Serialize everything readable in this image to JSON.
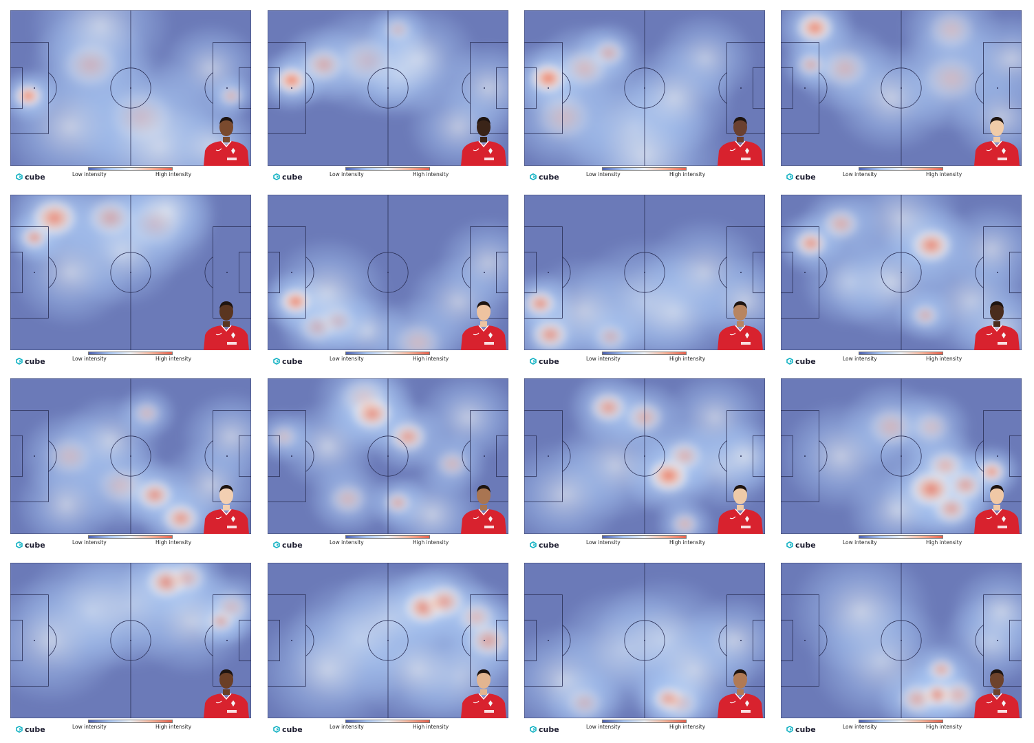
{
  "labels": {
    "low": "Low intensity",
    "high": "High intensity",
    "brand": "cube"
  },
  "colors": {
    "pitch_bg": "#6b7ab8",
    "scale": [
      "#4a5fb0",
      "#a9c6f2",
      "#eef2f6",
      "#f7b59b",
      "#e8604c"
    ],
    "kit_red": "#d8222e",
    "brand_teal": "#17b3c4",
    "line": "#2a2f55"
  },
  "chart_data": {
    "type": "heatmap",
    "pitch_units": {
      "x": [
        0,
        120
      ],
      "y": [
        0,
        80
      ]
    },
    "colorbar": {
      "low_label": "Low intensity",
      "high_label": "High intensity"
    },
    "panels": [
      {
        "skin": "#7a4a2e",
        "spots": [
          [
            9,
            44,
            0.98,
            6
          ],
          [
            110,
            44,
            0.62,
            5
          ],
          [
            40,
            28,
            0.5,
            12
          ],
          [
            65,
            55,
            0.45,
            14
          ],
          [
            30,
            60,
            0.4,
            14
          ],
          [
            75,
            70,
            0.32,
            18
          ],
          [
            45,
            8,
            0.3,
            14
          ],
          [
            100,
            70,
            0.28,
            10
          ],
          [
            100,
            30,
            0.3,
            10
          ]
        ]
      },
      {
        "skin": "#3a2418",
        "spots": [
          [
            12,
            36,
            0.98,
            7
          ],
          [
            28,
            28,
            0.6,
            9
          ],
          [
            50,
            26,
            0.45,
            12
          ],
          [
            65,
            33,
            0.4,
            10
          ],
          [
            65,
            10,
            0.5,
            6
          ],
          [
            75,
            25,
            0.3,
            12
          ],
          [
            110,
            40,
            0.35,
            10
          ],
          [
            95,
            60,
            0.28,
            10
          ]
        ]
      },
      {
        "skin": "#6a4030",
        "spots": [
          [
            12,
            35,
            0.98,
            8
          ],
          [
            42,
            22,
            0.6,
            7
          ],
          [
            30,
            30,
            0.5,
            10
          ],
          [
            20,
            55,
            0.45,
            12
          ],
          [
            55,
            60,
            0.3,
            14
          ],
          [
            60,
            75,
            0.3,
            16
          ],
          [
            90,
            25,
            0.3,
            10
          ],
          [
            75,
            45,
            0.3,
            12
          ]
        ]
      },
      {
        "skin": "#f0cba8",
        "spots": [
          [
            17,
            9,
            0.9,
            8
          ],
          [
            15,
            28,
            0.62,
            6
          ],
          [
            32,
            30,
            0.5,
            10
          ],
          [
            55,
            45,
            0.42,
            12
          ],
          [
            85,
            35,
            0.45,
            12
          ],
          [
            85,
            10,
            0.45,
            10
          ],
          [
            115,
            25,
            0.35,
            10
          ],
          [
            110,
            55,
            0.28,
            10
          ]
        ]
      },
      {
        "skin": "#5a3520",
        "spots": [
          [
            12,
            22,
            0.8,
            6
          ],
          [
            22,
            12,
            0.85,
            10
          ],
          [
            50,
            12,
            0.6,
            10
          ],
          [
            72,
            15,
            0.45,
            12
          ],
          [
            78,
            8,
            0.4,
            10
          ],
          [
            55,
            30,
            0.3,
            12
          ],
          [
            30,
            40,
            0.3,
            12
          ]
        ]
      },
      {
        "skin": "#eec3a0",
        "spots": [
          [
            14,
            55,
            0.95,
            7
          ],
          [
            25,
            68,
            0.55,
            8
          ],
          [
            35,
            65,
            0.5,
            8
          ],
          [
            50,
            70,
            0.4,
            8
          ],
          [
            75,
            76,
            0.45,
            10
          ],
          [
            95,
            55,
            0.3,
            10
          ],
          [
            30,
            50,
            0.35,
            12
          ],
          [
            110,
            35,
            0.25,
            10
          ]
        ]
      },
      {
        "skin": "#b88560",
        "spots": [
          [
            8,
            56,
            0.85,
            7
          ],
          [
            13,
            72,
            0.8,
            8
          ],
          [
            43,
            73,
            0.55,
            7
          ],
          [
            60,
            55,
            0.3,
            14
          ],
          [
            75,
            60,
            0.3,
            12
          ],
          [
            90,
            40,
            0.25,
            12
          ],
          [
            110,
            55,
            0.3,
            10
          ],
          [
            30,
            60,
            0.3,
            12
          ]
        ]
      },
      {
        "skin": "#4a2c1c",
        "spots": [
          [
            15,
            25,
            0.82,
            7
          ],
          [
            75,
            26,
            0.88,
            9
          ],
          [
            30,
            15,
            0.6,
            8
          ],
          [
            72,
            62,
            0.6,
            6
          ],
          [
            35,
            45,
            0.4,
            10
          ],
          [
            55,
            45,
            0.4,
            12
          ],
          [
            95,
            55,
            0.35,
            12
          ],
          [
            105,
            28,
            0.3,
            10
          ],
          [
            60,
            12,
            0.3,
            12
          ],
          [
            110,
            70,
            0.3,
            10
          ]
        ]
      },
      {
        "skin": "#f2cfb2",
        "spots": [
          [
            72,
            60,
            0.82,
            8
          ],
          [
            85,
            72,
            0.8,
            8
          ],
          [
            30,
            40,
            0.45,
            10
          ],
          [
            55,
            55,
            0.45,
            10
          ],
          [
            68,
            18,
            0.5,
            6
          ],
          [
            50,
            32,
            0.35,
            10
          ],
          [
            28,
            65,
            0.35,
            10
          ],
          [
            100,
            55,
            0.35,
            10
          ],
          [
            110,
            30,
            0.3,
            10
          ]
        ]
      },
      {
        "skin": "#a97552",
        "spots": [
          [
            52,
            18,
            0.88,
            9
          ],
          [
            70,
            30,
            0.75,
            8
          ],
          [
            65,
            64,
            0.65,
            6
          ],
          [
            40,
            62,
            0.5,
            8
          ],
          [
            48,
            10,
            0.45,
            10
          ],
          [
            30,
            35,
            0.4,
            10
          ],
          [
            92,
            44,
            0.5,
            7
          ],
          [
            82,
            70,
            0.4,
            10
          ],
          [
            8,
            30,
            0.45,
            6
          ],
          [
            100,
            20,
            0.35,
            10
          ]
        ]
      },
      {
        "skin": "#eecaa8",
        "spots": [
          [
            72,
            50,
            0.95,
            9
          ],
          [
            80,
            40,
            0.6,
            8
          ],
          [
            42,
            15,
            0.75,
            8
          ],
          [
            60,
            20,
            0.6,
            8
          ],
          [
            80,
            75,
            0.55,
            6
          ],
          [
            45,
            45,
            0.35,
            12
          ],
          [
            100,
            45,
            0.35,
            10
          ],
          [
            20,
            60,
            0.3,
            12
          ],
          [
            95,
            20,
            0.3,
            10
          ],
          [
            110,
            40,
            0.4,
            8
          ]
        ]
      },
      {
        "skin": "#f0c8a6",
        "spots": [
          [
            75,
            57,
            0.9,
            10
          ],
          [
            85,
            67,
            0.7,
            8
          ],
          [
            92,
            55,
            0.7,
            8
          ],
          [
            82,
            45,
            0.6,
            8
          ],
          [
            105,
            48,
            0.85,
            6
          ],
          [
            55,
            25,
            0.5,
            10
          ],
          [
            58,
            68,
            0.35,
            10
          ],
          [
            30,
            40,
            0.35,
            12
          ],
          [
            75,
            25,
            0.45,
            8
          ]
        ]
      },
      {
        "skin": "#6b3f26",
        "spots": [
          [
            78,
            10,
            0.85,
            9
          ],
          [
            88,
            8,
            0.6,
            8
          ],
          [
            105,
            30,
            0.7,
            6
          ],
          [
            110,
            23,
            0.5,
            8
          ],
          [
            60,
            22,
            0.3,
            14
          ],
          [
            40,
            25,
            0.3,
            14
          ],
          [
            20,
            40,
            0.25,
            14
          ],
          [
            90,
            30,
            0.35,
            12
          ]
        ]
      },
      {
        "skin": "#e3b590",
        "spots": [
          [
            78,
            23,
            0.9,
            9
          ],
          [
            88,
            20,
            0.75,
            9
          ],
          [
            110,
            40,
            0.7,
            9
          ],
          [
            104,
            28,
            0.55,
            8
          ],
          [
            60,
            30,
            0.4,
            12
          ],
          [
            45,
            40,
            0.3,
            14
          ],
          [
            30,
            55,
            0.3,
            14
          ],
          [
            95,
            58,
            0.3,
            12
          ],
          [
            75,
            55,
            0.3,
            12
          ]
        ]
      },
      {
        "skin": "#b07a55",
        "spots": [
          [
            72,
            70,
            0.85,
            7
          ],
          [
            78,
            72,
            0.5,
            8
          ],
          [
            30,
            72,
            0.5,
            8
          ],
          [
            20,
            60,
            0.35,
            12
          ],
          [
            50,
            45,
            0.3,
            14
          ],
          [
            70,
            40,
            0.3,
            14
          ],
          [
            85,
            55,
            0.3,
            12
          ],
          [
            105,
            40,
            0.3,
            10
          ]
        ]
      },
      {
        "skin": "#6e432c",
        "spots": [
          [
            78,
            68,
            0.9,
            7
          ],
          [
            68,
            70,
            0.65,
            8
          ],
          [
            88,
            68,
            0.6,
            8
          ],
          [
            80,
            55,
            0.7,
            6
          ],
          [
            50,
            50,
            0.35,
            14
          ],
          [
            40,
            25,
            0.35,
            14
          ],
          [
            105,
            40,
            0.4,
            10
          ],
          [
            110,
            25,
            0.3,
            10
          ]
        ]
      }
    ]
  }
}
